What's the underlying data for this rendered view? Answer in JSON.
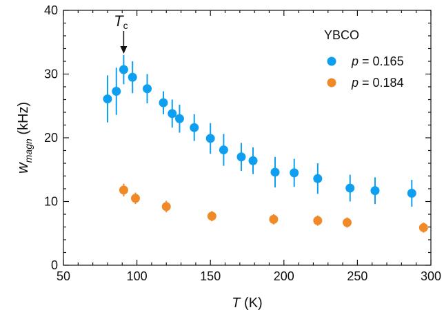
{
  "chart_data": {
    "type": "scatter",
    "title": "",
    "xlabel": {
      "var": "T",
      "unit": " (K)"
    },
    "ylabel": {
      "var": "w",
      "sub": "magn",
      "unit": " (kHz)"
    },
    "xlim": [
      50,
      300
    ],
    "ylim": [
      0,
      40
    ],
    "xticks": [
      50,
      100,
      150,
      200,
      250,
      300
    ],
    "yticks": [
      0,
      10,
      20,
      30,
      40
    ],
    "grid": false,
    "legend": {
      "title": "YBCO",
      "placement": "top-right"
    },
    "annotation": {
      "text": "T",
      "sub": "c",
      "x": 91,
      "y_target": 33
    },
    "series": [
      {
        "name": "p = 0.165",
        "label_var": "p",
        "label_value": " = 0.165",
        "color": "#0f9ff0",
        "points": [
          {
            "x": 80,
            "y": 26.1,
            "err": 3.7
          },
          {
            "x": 86,
            "y": 27.3,
            "err": 3.7
          },
          {
            "x": 91,
            "y": 30.7,
            "err": 2.3
          },
          {
            "x": 97,
            "y": 29.5,
            "err": 2.5
          },
          {
            "x": 107,
            "y": 27.7,
            "err": 2.3
          },
          {
            "x": 118,
            "y": 25.5,
            "err": 1.8
          },
          {
            "x": 124,
            "y": 23.8,
            "err": 2.2
          },
          {
            "x": 129,
            "y": 23.0,
            "err": 2.2
          },
          {
            "x": 139,
            "y": 21.6,
            "err": 2.1
          },
          {
            "x": 150,
            "y": 19.9,
            "err": 2.4
          },
          {
            "x": 159,
            "y": 18.1,
            "err": 2.5
          },
          {
            "x": 171,
            "y": 17.0,
            "err": 2.2
          },
          {
            "x": 179,
            "y": 16.4,
            "err": 2.1
          },
          {
            "x": 194,
            "y": 14.6,
            "err": 2.4
          },
          {
            "x": 207,
            "y": 14.5,
            "err": 2.2
          },
          {
            "x": 223,
            "y": 13.6,
            "err": 2.4
          },
          {
            "x": 245,
            "y": 12.1,
            "err": 2.1
          },
          {
            "x": 262,
            "y": 11.7,
            "err": 2.1
          },
          {
            "x": 287,
            "y": 11.3,
            "err": 2.1
          }
        ]
      },
      {
        "name": "p = 0.184",
        "label_var": "p",
        "label_value": " = 0.184",
        "color": "#f08a28",
        "points": [
          {
            "x": 91,
            "y": 11.8,
            "err": 1.0
          },
          {
            "x": 99,
            "y": 10.5,
            "err": 0.9
          },
          {
            "x": 120,
            "y": 9.2,
            "err": 0.9
          },
          {
            "x": 151,
            "y": 7.7,
            "err": 0.8
          },
          {
            "x": 193,
            "y": 7.2,
            "err": 0.8
          },
          {
            "x": 223,
            "y": 7.0,
            "err": 0.8
          },
          {
            "x": 243,
            "y": 6.7,
            "err": 0.8
          },
          {
            "x": 295,
            "y": 5.9,
            "err": 0.8
          }
        ]
      }
    ]
  }
}
